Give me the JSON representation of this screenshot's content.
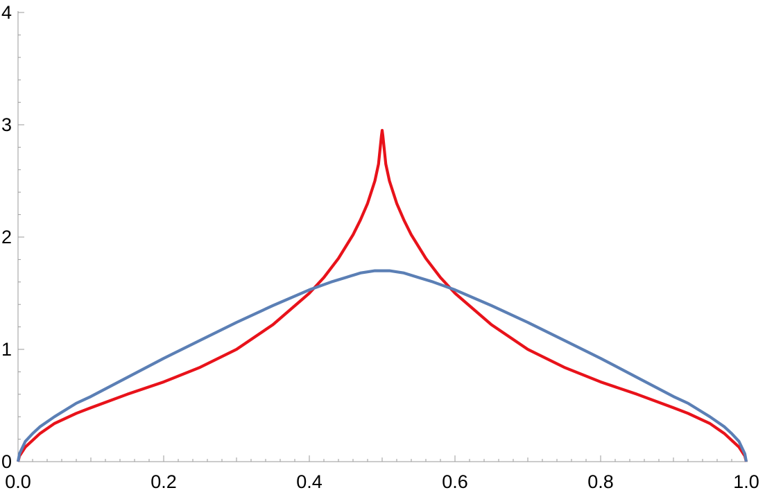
{
  "chart_data": {
    "type": "line",
    "title": "",
    "xlabel": "",
    "ylabel": "",
    "xlim": [
      0.0,
      1.0
    ],
    "ylim": [
      0,
      4
    ],
    "x_ticks": [
      0.0,
      0.2,
      0.4,
      0.6,
      0.8,
      1.0
    ],
    "x_tick_labels": [
      "0.0",
      "0.2",
      "0.4",
      "0.6",
      "0.8",
      "1.0"
    ],
    "y_ticks": [
      0,
      1,
      2,
      3,
      4
    ],
    "y_tick_labels": [
      "0",
      "1",
      "2",
      "3",
      "4"
    ],
    "grid": false,
    "legend": "none",
    "series": [
      {
        "color": "#e8121a",
        "x": [
          0.0,
          0.002,
          0.01,
          0.03,
          0.05,
          0.08,
          0.1,
          0.15,
          0.2,
          0.25,
          0.3,
          0.35,
          0.4,
          0.42,
          0.44,
          0.46,
          0.47,
          0.48,
          0.49,
          0.495,
          0.499,
          0.5,
          0.501,
          0.505,
          0.51,
          0.52,
          0.53,
          0.54,
          0.56,
          0.58,
          0.6,
          0.65,
          0.7,
          0.75,
          0.8,
          0.85,
          0.9,
          0.92,
          0.95,
          0.97,
          0.99,
          0.998,
          1.0
        ],
        "y": [
          0.0,
          0.05,
          0.13,
          0.25,
          0.34,
          0.43,
          0.48,
          0.6,
          0.71,
          0.84,
          1.0,
          1.22,
          1.5,
          1.64,
          1.81,
          2.02,
          2.15,
          2.3,
          2.5,
          2.65,
          2.9,
          2.95,
          2.9,
          2.65,
          2.5,
          2.3,
          2.15,
          2.02,
          1.81,
          1.64,
          1.5,
          1.22,
          1.0,
          0.84,
          0.71,
          0.6,
          0.48,
          0.43,
          0.34,
          0.25,
          0.13,
          0.05,
          0.0
        ]
      },
      {
        "color": "#5b7fb5",
        "x": [
          0.0,
          0.002,
          0.01,
          0.02,
          0.03,
          0.05,
          0.08,
          0.1,
          0.15,
          0.2,
          0.25,
          0.3,
          0.35,
          0.4,
          0.43,
          0.45,
          0.47,
          0.49,
          0.5,
          0.51,
          0.53,
          0.55,
          0.57,
          0.6,
          0.65,
          0.7,
          0.75,
          0.8,
          0.85,
          0.9,
          0.92,
          0.95,
          0.97,
          0.98,
          0.99,
          0.998,
          1.0
        ],
        "y": [
          0.0,
          0.07,
          0.18,
          0.25,
          0.31,
          0.4,
          0.52,
          0.58,
          0.75,
          0.92,
          1.08,
          1.24,
          1.39,
          1.53,
          1.6,
          1.64,
          1.68,
          1.7,
          1.7,
          1.7,
          1.68,
          1.64,
          1.6,
          1.53,
          1.39,
          1.24,
          1.08,
          0.92,
          0.75,
          0.58,
          0.52,
          0.4,
          0.31,
          0.25,
          0.18,
          0.07,
          0.0
        ]
      }
    ]
  }
}
